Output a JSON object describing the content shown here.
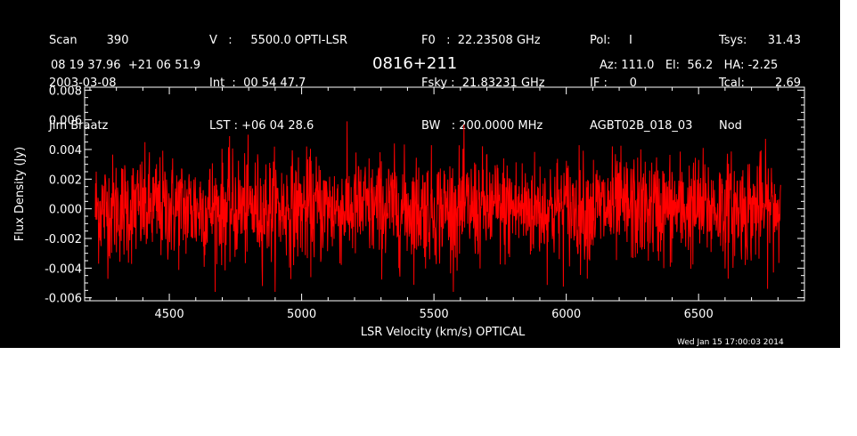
{
  "header": {
    "col1": [
      "Scan        390",
      "2003-03-08",
      "Jim Braatz"
    ],
    "col2": [
      "V   :     5500.0 OPTI-LSR",
      "Int  :  00 54 47.7",
      "LST : +06 04 28.6"
    ],
    "col3": [
      "F0   :  22.23508 GHz",
      "Fsky :  21.83231 GHz",
      "BW   : 200.0000 MHz"
    ],
    "col4": [
      "Pol:     I",
      "IF :      0",
      "AGBT02B_018_03"
    ],
    "col5a": [
      "Tsys:",
      "Tcal:",
      "Nod"
    ],
    "col5b": [
      "31.43",
      "2.69",
      ""
    ],
    "coords": "08 19 37.96  +21 06 51.9",
    "source": "0816+211",
    "pointing": "Az: 111.0   El:  56.2   HA: -2.25"
  },
  "timestamp": "Wed Jan 15 17:00:03 2014",
  "colors": {
    "background": "#000000",
    "trace": "#ff0000",
    "axes": "#ffffff"
  },
  "chart_data": {
    "type": "line",
    "title": "0816+211",
    "xlabel": "LSR Velocity (km/s) OPTICAL",
    "ylabel": "Flux Density (Jy)",
    "xlim": [
      4180,
      6900
    ],
    "ylim": [
      -0.0062,
      0.0082
    ],
    "x_ticks": [
      4500,
      5000,
      5500,
      6000,
      6500
    ],
    "y_ticks": [
      -0.006,
      -0.004,
      -0.002,
      0.0,
      0.002,
      0.004,
      0.006,
      0.008
    ],
    "y_tick_labels": [
      "-0.006",
      "-0.004",
      "-0.002",
      "0.000",
      "0.002",
      "0.004",
      "0.006",
      "0.008"
    ],
    "grid": false,
    "series": [
      {
        "x_range": [
          4220,
          6810
        ],
        "note_style": "noise",
        "mean": 0.0,
        "rms": 0.0018
      }
    ]
  }
}
